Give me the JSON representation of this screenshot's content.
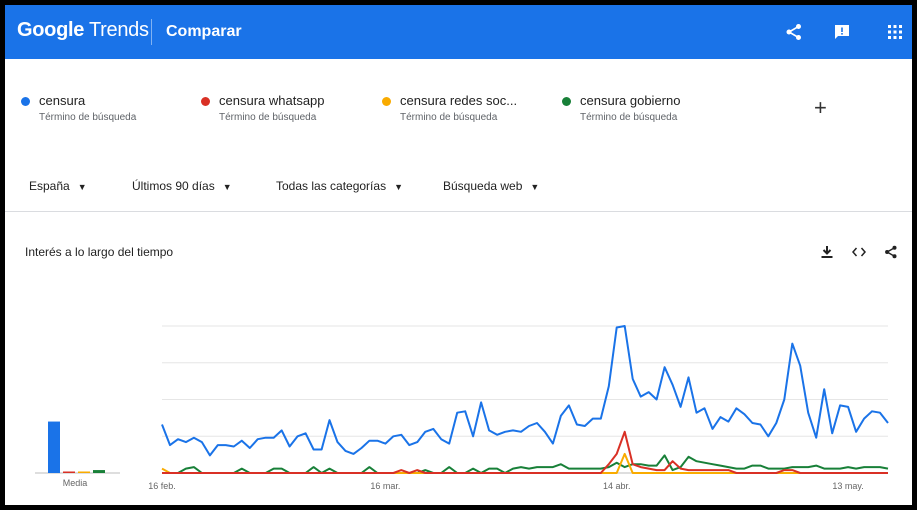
{
  "header": {
    "logo_brand": "Google",
    "logo_product": " Trends",
    "compare_label": "Comparar",
    "icons": [
      "share-icon",
      "feedback-icon",
      "apps-grid-icon"
    ]
  },
  "terms": [
    {
      "name": "censura",
      "subtitle": "Término de búsqueda",
      "color": "#1a73e8"
    },
    {
      "name": "censura whatsapp",
      "subtitle": "Término de búsqueda",
      "color": "#d93025"
    },
    {
      "name": "censura redes soc...",
      "subtitle": "Término de búsqueda",
      "color": "#f9ab00"
    },
    {
      "name": "censura gobierno",
      "subtitle": "Término de búsqueda",
      "color": "#188038"
    }
  ],
  "add_term_label": "+",
  "filters": [
    {
      "label": "España",
      "caret": "▼"
    },
    {
      "label": "Últimos 90 días",
      "caret": "▼"
    },
    {
      "label": "Todas las categorías",
      "caret": "▼"
    },
    {
      "label": "Búsqueda web",
      "caret": "▼"
    }
  ],
  "chart": {
    "title": "Interés a lo largo del tiempo",
    "icons": [
      "download-icon",
      "embed-icon",
      "share-icon"
    ]
  },
  "chart_data": {
    "type": "line",
    "ylim": [
      0,
      100
    ],
    "grid": true,
    "xticks": [
      {
        "label": "16 feb.",
        "index": 0
      },
      {
        "label": "16 mar.",
        "index": 28
      },
      {
        "label": "14 abr.",
        "index": 57
      },
      {
        "label": "13 may.",
        "index": 86
      }
    ],
    "average": {
      "label": "Media",
      "values": [
        {
          "series": "censura",
          "value": 35
        },
        {
          "series": "censura whatsapp",
          "value": 1
        },
        {
          "series": "censura redes soc...",
          "value": 1
        },
        {
          "series": "censura gobierno",
          "value": 2
        }
      ]
    },
    "series": [
      {
        "name": "censura",
        "color": "#1a73e8",
        "values": [
          33,
          19,
          23,
          21,
          24,
          21,
          12,
          19,
          19,
          18,
          22,
          17,
          23,
          24,
          24,
          29,
          18,
          25,
          27,
          16,
          16,
          36,
          21,
          15,
          13,
          17,
          22,
          22,
          20,
          25,
          26,
          19,
          21,
          28,
          30,
          23,
          20,
          41,
          42,
          25,
          48,
          29,
          26,
          28,
          29,
          28,
          32,
          34,
          28,
          20,
          39,
          46,
          33,
          32,
          37,
          37,
          59,
          99,
          100,
          64,
          52,
          55,
          50,
          72,
          60,
          45,
          65,
          41,
          44,
          30,
          38,
          35,
          44,
          40,
          34,
          33,
          25,
          34,
          50,
          88,
          73,
          41,
          24,
          57,
          27,
          46,
          45,
          28,
          37,
          42,
          41,
          34
        ]
      },
      {
        "name": "censura whatsapp",
        "color": "#d93025",
        "values": [
          0,
          0,
          0,
          0,
          0,
          0,
          0,
          0,
          0,
          0,
          0,
          0,
          0,
          0,
          0,
          0,
          0,
          0,
          0,
          0,
          0,
          0,
          0,
          0,
          0,
          0,
          0,
          0,
          0,
          0,
          2,
          0,
          2,
          0,
          0,
          0,
          0,
          0,
          0,
          0,
          0,
          0,
          0,
          0,
          0,
          0,
          0,
          0,
          0,
          0,
          0,
          0,
          0,
          0,
          0,
          0,
          6,
          13,
          28,
          6,
          4,
          3,
          2,
          2,
          8,
          3,
          2,
          2,
          2,
          2,
          2,
          2,
          0,
          0,
          0,
          0,
          0,
          0,
          2,
          2,
          0,
          0,
          0,
          0,
          0,
          0,
          0,
          0,
          0,
          0,
          0,
          0
        ]
      },
      {
        "name": "censura redes soc...",
        "color": "#f9ab00",
        "values": [
          3,
          0,
          0,
          0,
          0,
          0,
          0,
          0,
          0,
          0,
          0,
          0,
          0,
          0,
          0,
          0,
          0,
          0,
          0,
          0,
          0,
          0,
          0,
          0,
          0,
          0,
          0,
          0,
          0,
          0,
          0,
          0,
          0,
          0,
          0,
          0,
          0,
          0,
          0,
          0,
          0,
          0,
          0,
          0,
          0,
          0,
          0,
          0,
          0,
          0,
          0,
          0,
          0,
          0,
          0,
          0,
          0,
          0,
          13,
          0,
          0,
          0,
          0,
          0,
          0,
          0,
          0,
          0,
          0,
          0,
          0,
          0,
          0,
          0,
          0,
          0,
          0,
          0,
          0,
          0,
          0,
          0,
          0,
          0,
          0,
          0,
          0,
          0,
          0,
          0,
          0,
          0
        ]
      },
      {
        "name": "censura gobierno",
        "color": "#188038",
        "values": [
          0,
          0,
          0,
          3,
          4,
          0,
          0,
          0,
          0,
          0,
          3,
          0,
          0,
          0,
          3,
          3,
          0,
          0,
          0,
          4,
          0,
          3,
          0,
          0,
          0,
          0,
          4,
          0,
          0,
          0,
          0,
          0,
          0,
          2,
          0,
          0,
          4,
          0,
          0,
          3,
          0,
          3,
          3,
          0,
          3,
          4,
          3,
          4,
          4,
          4,
          6,
          3,
          3,
          3,
          3,
          3,
          4,
          7,
          4,
          6,
          6,
          5,
          5,
          12,
          2,
          4,
          11,
          8,
          7,
          6,
          5,
          4,
          3,
          3,
          5,
          5,
          3,
          3,
          3,
          4,
          4,
          4,
          5,
          3,
          3,
          3,
          4,
          3,
          4,
          4,
          4,
          3
        ]
      }
    ]
  }
}
